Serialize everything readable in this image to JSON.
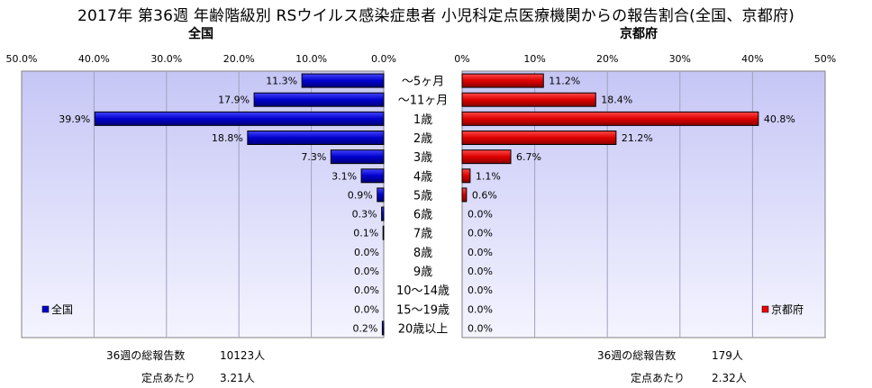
{
  "title": "2017年 第36週 年齢階級別 RSウイルス感染症患者 小児科定点医療機関からの報告割合(全国、京都府)",
  "panels": {
    "left": {
      "subtitle": "全国",
      "legend_label": "全国",
      "color": "#0000cc",
      "ticks": [
        "50.0%",
        "40.0%",
        "30.0%",
        "20.0%",
        "10.0%",
        "0.0%"
      ]
    },
    "right": {
      "subtitle": "京都府",
      "legend_label": "京都府",
      "color": "#ee0000",
      "ticks": [
        "0%",
        "10%",
        "20%",
        "30%",
        "40%",
        "50%"
      ]
    }
  },
  "footer": {
    "left_total_label": "36週の総報告数",
    "left_total_value": "10123人",
    "left_per_label": "定点あたり",
    "left_per_value": "3.21人",
    "right_total_label": "36週の総報告数",
    "right_total_value": "179人",
    "right_per_label": "定点あたり",
    "right_per_value": "2.32人"
  },
  "chart_data": [
    {
      "type": "bar",
      "orientation": "horizontal",
      "title": "全国",
      "categories": [
        "～5ヶ月",
        "～11ヶ月",
        "1歳",
        "2歳",
        "3歳",
        "4歳",
        "5歳",
        "6歳",
        "7歳",
        "8歳",
        "9歳",
        "10～14歳",
        "15～19歳",
        "20歳以上"
      ],
      "series": [
        {
          "name": "全国",
          "values": [
            11.3,
            17.9,
            39.9,
            18.8,
            7.3,
            3.1,
            0.9,
            0.3,
            0.1,
            0.0,
            0.0,
            0.0,
            0.0,
            0.2
          ]
        }
      ],
      "value_labels": [
        "11.3%",
        "17.9%",
        "39.9%",
        "18.8%",
        "7.3%",
        "3.1%",
        "0.9%",
        "0.3%",
        "0.1%",
        "0.0%",
        "0.0%",
        "0.0%",
        "0.0%",
        "0.2%"
      ],
      "xlim": [
        0,
        50
      ],
      "axis_direction": "reversed",
      "grid": true,
      "legend_position": "bottom-left"
    },
    {
      "type": "bar",
      "orientation": "horizontal",
      "title": "京都府",
      "categories": [
        "～5ヶ月",
        "～11ヶ月",
        "1歳",
        "2歳",
        "3歳",
        "4歳",
        "5歳",
        "6歳",
        "7歳",
        "8歳",
        "9歳",
        "10～14歳",
        "15～19歳",
        "20歳以上"
      ],
      "series": [
        {
          "name": "京都府",
          "values": [
            11.2,
            18.4,
            40.8,
            21.2,
            6.7,
            1.1,
            0.6,
            0.0,
            0.0,
            0.0,
            0.0,
            0.0,
            0.0,
            0.0
          ]
        }
      ],
      "value_labels": [
        "11.2%",
        "18.4%",
        "40.8%",
        "21.2%",
        "6.7%",
        "1.1%",
        "0.6%",
        "0.0%",
        "0.0%",
        "0.0%",
        "0.0%",
        "0.0%",
        "0.0%",
        "0.0%"
      ],
      "xlim": [
        0,
        50
      ],
      "axis_direction": "normal",
      "grid": true,
      "legend_position": "bottom-right"
    }
  ]
}
